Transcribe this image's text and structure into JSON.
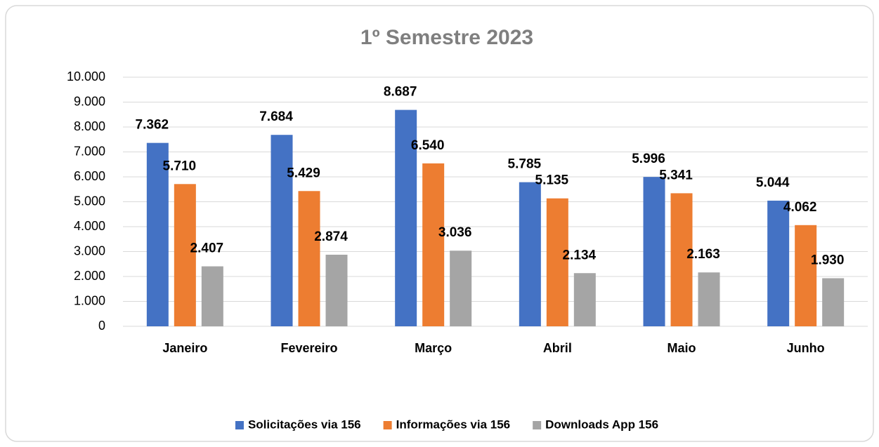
{
  "chart_data": {
    "type": "bar",
    "title": "1º Semestre 2023",
    "categories": [
      "Janeiro",
      "Fevereiro",
      "Março",
      "Abril",
      "Maio",
      "Junho"
    ],
    "series": [
      {
        "name": "Solicitações via 156",
        "color": "#4472c4",
        "values": [
          7362,
          7684,
          8687,
          5785,
          5996,
          5044
        ],
        "value_labels": [
          "7.362",
          "7.684",
          "8.687",
          "5.785",
          "5.996",
          "5.044"
        ]
      },
      {
        "name": "Informações via 156",
        "color": "#ed7d31",
        "values": [
          5710,
          5429,
          6540,
          5135,
          5341,
          4062
        ],
        "value_labels": [
          "5.710",
          "5.429",
          "6.540",
          "5.135",
          "5.341",
          "4.062"
        ]
      },
      {
        "name": "Downloads App 156",
        "color": "#a5a5a5",
        "values": [
          2407,
          2874,
          3036,
          2134,
          2163,
          1930
        ],
        "value_labels": [
          "2.407",
          "2.874",
          "3.036",
          "2.134",
          "2.163",
          "1.930"
        ]
      }
    ],
    "ylim": [
      0,
      10000
    ],
    "yticks": [
      0,
      {
        "value": 1000,
        "label": "1.000"
      },
      {
        "value": 2000,
        "label": "2.000"
      },
      {
        "value": 3000,
        "label": "3.000"
      },
      {
        "value": 4000,
        "label": "4.000"
      },
      {
        "value": 5000,
        "label": "5.000"
      },
      {
        "value": 6000,
        "label": "6.000"
      },
      {
        "value": 7000,
        "label": "7.000"
      },
      {
        "value": 8000,
        "label": "8.000"
      },
      {
        "value": 9000,
        "label": "9.000"
      },
      {
        "value": 10000,
        "label": "10.000"
      }
    ],
    "grid": true,
    "legend": "bottom"
  }
}
